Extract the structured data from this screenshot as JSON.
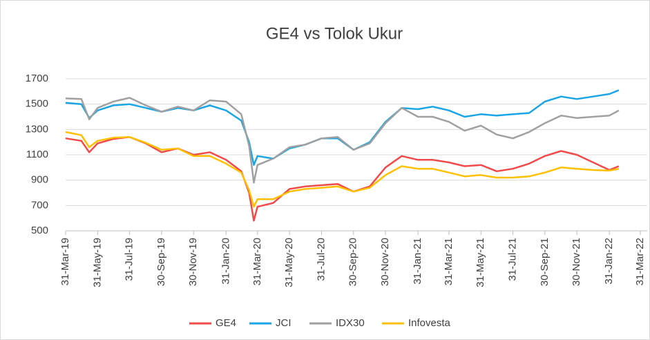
{
  "chart_data": {
    "type": "line",
    "title": "GE4 vs Tolok Ukur",
    "x": [
      "2019-03-31",
      "2019-04-30",
      "2019-05-15",
      "2019-05-31",
      "2019-06-30",
      "2019-07-31",
      "2019-08-31",
      "2019-09-30",
      "2019-10-31",
      "2019-11-30",
      "2019-12-31",
      "2020-01-31",
      "2020-02-29",
      "2020-03-15",
      "2020-03-24",
      "2020-03-31",
      "2020-04-30",
      "2020-05-31",
      "2020-06-30",
      "2020-07-31",
      "2020-08-31",
      "2020-09-30",
      "2020-10-31",
      "2020-11-30",
      "2020-12-31",
      "2021-01-31",
      "2021-02-28",
      "2021-03-31",
      "2021-04-30",
      "2021-05-31",
      "2021-06-30",
      "2021-07-31",
      "2021-08-31",
      "2021-09-30",
      "2021-10-31",
      "2021-11-30",
      "2021-12-31",
      "2022-01-31",
      "2022-02-18"
    ],
    "series": [
      {
        "name": "GE4",
        "color": "#f04a4a",
        "values": [
          1230,
          1210,
          1120,
          1190,
          1225,
          1240,
          1190,
          1120,
          1150,
          1100,
          1120,
          1060,
          970,
          800,
          580,
          690,
          720,
          830,
          850,
          860,
          870,
          810,
          850,
          1000,
          1090,
          1060,
          1060,
          1040,
          1010,
          1020,
          970,
          990,
          1030,
          1090,
          1130,
          1100,
          1040,
          980,
          1010
        ]
      },
      {
        "name": "JCI",
        "color": "#1aa6e6",
        "values": [
          1510,
          1500,
          1390,
          1450,
          1490,
          1500,
          1470,
          1440,
          1470,
          1450,
          1490,
          1450,
          1370,
          1200,
          1020,
          1090,
          1070,
          1150,
          1180,
          1230,
          1230,
          1140,
          1200,
          1360,
          1470,
          1460,
          1480,
          1450,
          1400,
          1420,
          1410,
          1420,
          1430,
          1520,
          1560,
          1540,
          1560,
          1580,
          1610
        ]
      },
      {
        "name": "IDX30",
        "color": "#a0a0a0",
        "values": [
          1545,
          1540,
          1380,
          1470,
          1520,
          1550,
          1490,
          1440,
          1480,
          1450,
          1530,
          1520,
          1420,
          1170,
          880,
          1020,
          1070,
          1160,
          1180,
          1230,
          1240,
          1140,
          1190,
          1350,
          1470,
          1400,
          1400,
          1360,
          1290,
          1330,
          1260,
          1230,
          1280,
          1350,
          1410,
          1390,
          1400,
          1410,
          1450
        ]
      },
      {
        "name": "Infovesta",
        "color": "#ffc000",
        "values": [
          1280,
          1255,
          1160,
          1210,
          1235,
          1240,
          1195,
          1140,
          1150,
          1090,
          1090,
          1030,
          960,
          820,
          690,
          750,
          750,
          810,
          830,
          840,
          850,
          810,
          840,
          940,
          1010,
          990,
          990,
          960,
          930,
          940,
          920,
          920,
          930,
          960,
          1000,
          990,
          980,
          975,
          990
        ]
      }
    ],
    "xlim": [
      "2019-03-31",
      "2022-03-31"
    ],
    "xticks": [
      {
        "value": "2019-03-31",
        "label": "31-Mar-19"
      },
      {
        "value": "2019-05-31",
        "label": "31-May-19"
      },
      {
        "value": "2019-07-31",
        "label": "31-Jul-19"
      },
      {
        "value": "2019-09-30",
        "label": "30-Sep-19"
      },
      {
        "value": "2019-11-30",
        "label": "30-Nov-19"
      },
      {
        "value": "2020-01-31",
        "label": "31-Jan-20"
      },
      {
        "value": "2020-03-31",
        "label": "31-Mar-20"
      },
      {
        "value": "2020-05-31",
        "label": "31-May-20"
      },
      {
        "value": "2020-07-31",
        "label": "31-Jul-20"
      },
      {
        "value": "2020-09-30",
        "label": "30-Sep-20"
      },
      {
        "value": "2020-11-30",
        "label": "30-Nov-20"
      },
      {
        "value": "2021-01-31",
        "label": "31-Jan-21"
      },
      {
        "value": "2021-03-31",
        "label": "31-Mar-21"
      },
      {
        "value": "2021-05-31",
        "label": "31-May-21"
      },
      {
        "value": "2021-07-31",
        "label": "31-Jul-21"
      },
      {
        "value": "2021-09-30",
        "label": "30-Sep-21"
      },
      {
        "value": "2021-11-30",
        "label": "30-Nov-21"
      },
      {
        "value": "2022-01-31",
        "label": "31-Jan-22"
      },
      {
        "value": "2022-03-31",
        "label": "31-Mar-22"
      }
    ],
    "ylim": [
      500,
      1700
    ],
    "yticks": [
      500,
      700,
      900,
      1100,
      1300,
      1500,
      1700
    ],
    "grid": true,
    "legend": "bottom"
  }
}
